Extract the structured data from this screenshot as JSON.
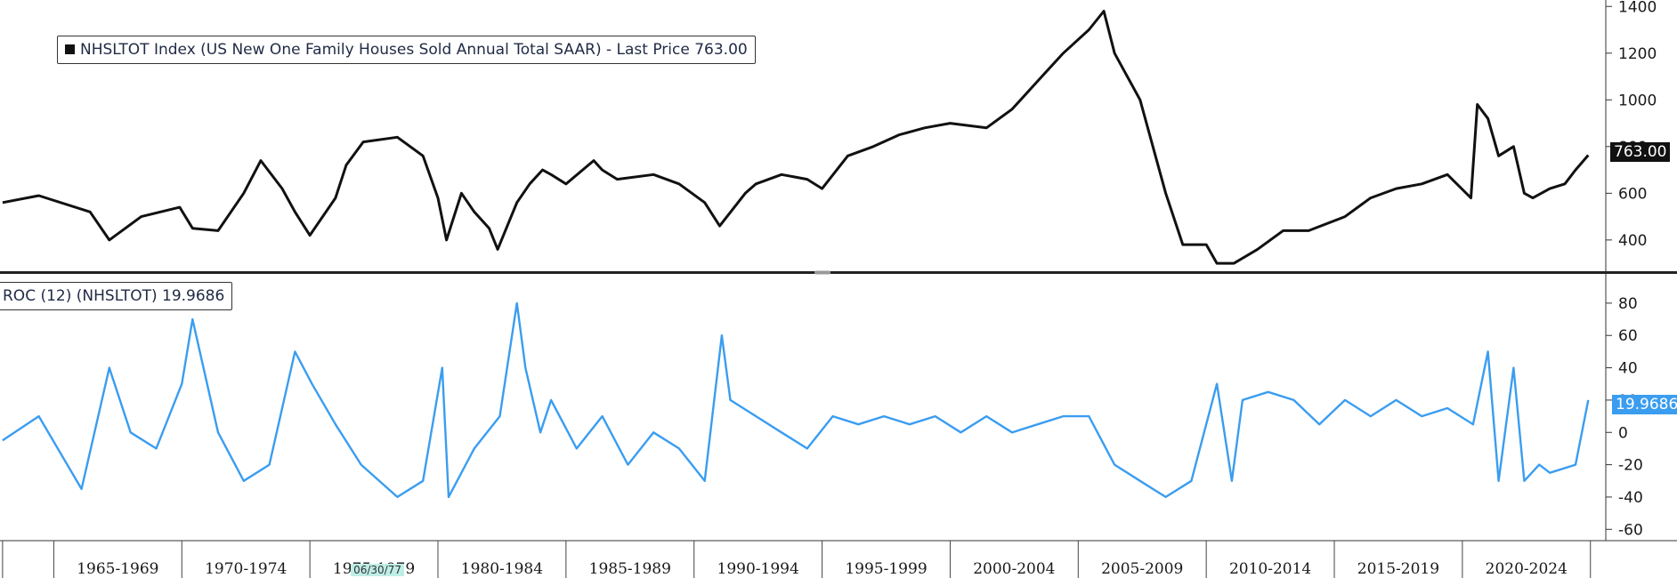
{
  "chart_data": [
    {
      "type": "line",
      "legend": "NHSLTOT Index (US New One Family Houses Sold Annual Total SAAR) - Last Price 763.00",
      "last_value_label": "763.00",
      "color": "#111111",
      "y_ticks": [
        400,
        600,
        800,
        1000,
        1200,
        1400
      ],
      "ylim": [
        270,
        1420
      ],
      "x": [
        "1963-01",
        "1964-06",
        "1966-06",
        "1967-03",
        "1968-06",
        "1969-12",
        "1970-06",
        "1971-06",
        "1972-06",
        "1973-02",
        "1973-12",
        "1974-06",
        "1975-01",
        "1976-01",
        "1976-06",
        "1977-02",
        "1978-06",
        "1979-06",
        "1980-01",
        "1980-05",
        "1980-12",
        "1981-06",
        "1982-01",
        "1982-05",
        "1983-02",
        "1983-08",
        "1984-02",
        "1984-06",
        "1985-01",
        "1986-02",
        "1986-06",
        "1987-01",
        "1988-06",
        "1989-06",
        "1990-06",
        "1991-01",
        "1992-01",
        "1992-06",
        "1993-06",
        "1994-06",
        "1995-01",
        "1996-01",
        "1997-01",
        "1998-01",
        "1999-01",
        "2000-01",
        "2001-06",
        "2002-06",
        "2003-06",
        "2004-06",
        "2005-06",
        "2006-01",
        "2006-06",
        "2007-06",
        "2008-06",
        "2009-02",
        "2010-01",
        "2010-06",
        "2011-02",
        "2012-01",
        "2013-01",
        "2014-01",
        "2015-06",
        "2016-06",
        "2017-06",
        "2018-06",
        "2019-06",
        "2020-05",
        "2020-08",
        "2021-01",
        "2021-06",
        "2022-01",
        "2022-06",
        "2022-10",
        "2023-06",
        "2024-01",
        "2024-06",
        "2024-12"
      ],
      "values": [
        560,
        590,
        520,
        400,
        500,
        540,
        450,
        440,
        600,
        740,
        620,
        520,
        420,
        580,
        720,
        820,
        840,
        760,
        580,
        400,
        600,
        520,
        450,
        360,
        560,
        640,
        700,
        680,
        640,
        740,
        700,
        660,
        680,
        640,
        560,
        460,
        600,
        640,
        680,
        660,
        620,
        760,
        800,
        850,
        880,
        900,
        880,
        960,
        1080,
        1200,
        1300,
        1380,
        1200,
        1000,
        600,
        380,
        380,
        300,
        300,
        360,
        440,
        440,
        500,
        580,
        620,
        640,
        680,
        580,
        980,
        920,
        760,
        800,
        600,
        580,
        620,
        640,
        700,
        763
      ]
    },
    {
      "type": "line",
      "legend": "ROC (12) (NHSLTOT) 19.9686",
      "last_value_label": "19.9686",
      "color": "#3a9df0",
      "y_ticks": [
        -60,
        -40,
        -20,
        0,
        20,
        40,
        60,
        80
      ],
      "ylim": [
        -67,
        97
      ],
      "x": [
        "1963-01",
        "1964-06",
        "1966-02",
        "1967-03",
        "1968-01",
        "1969-01",
        "1970-01",
        "1970-06",
        "1971-06",
        "1972-06",
        "1973-06",
        "1974-06",
        "1975-02",
        "1976-01",
        "1977-01",
        "1978-06",
        "1979-06",
        "1980-03",
        "1980-06",
        "1981-06",
        "1982-06",
        "1983-02",
        "1983-06",
        "1984-01",
        "1984-06",
        "1985-06",
        "1986-06",
        "1987-06",
        "1988-06",
        "1989-06",
        "1990-06",
        "1991-02",
        "1991-06",
        "1992-06",
        "1993-06",
        "1994-06",
        "1995-06",
        "1996-06",
        "1997-06",
        "1998-06",
        "1999-06",
        "2000-06",
        "2001-06",
        "2002-06",
        "2003-06",
        "2004-06",
        "2005-06",
        "2006-06",
        "2007-06",
        "2008-06",
        "2009-06",
        "2010-06",
        "2011-01",
        "2011-06",
        "2012-06",
        "2013-06",
        "2014-06",
        "2015-06",
        "2016-06",
        "2017-06",
        "2018-06",
        "2019-06",
        "2020-06",
        "2021-01",
        "2021-06",
        "2022-01",
        "2022-06",
        "2023-01",
        "2023-06",
        "2024-06",
        "2024-12"
      ],
      "values": [
        -5,
        10,
        -35,
        40,
        0,
        -10,
        30,
        70,
        0,
        -30,
        -20,
        50,
        30,
        5,
        -20,
        -40,
        -30,
        40,
        -40,
        -10,
        10,
        80,
        40,
        0,
        20,
        -10,
        10,
        -20,
        0,
        -10,
        -30,
        60,
        20,
        10,
        0,
        -10,
        10,
        5,
        10,
        5,
        10,
        0,
        10,
        0,
        5,
        10,
        10,
        -20,
        -30,
        -40,
        -30,
        30,
        -30,
        20,
        25,
        20,
        5,
        20,
        10,
        20,
        10,
        15,
        5,
        50,
        -30,
        40,
        -30,
        -20,
        -25,
        -20,
        20
      ]
    }
  ],
  "x_axis": {
    "tick_years": [
      1963,
      1965,
      1970,
      1975,
      1980,
      1985,
      1990,
      1995,
      2000,
      2005,
      2010,
      2015,
      2020,
      2025
    ],
    "labels": [
      {
        "text": "1965-1969",
        "center_year": 1967.5
      },
      {
        "text": "1970-1974",
        "center_year": 1972.5
      },
      {
        "text": "1975-1979",
        "center_year": 1977.5
      },
      {
        "text": "1980-1984",
        "center_year": 1982.5
      },
      {
        "text": "1985-1989",
        "center_year": 1987.5
      },
      {
        "text": "1990-1994",
        "center_year": 1992.5
      },
      {
        "text": "1995-1999",
        "center_year": 1997.5
      },
      {
        "text": "2000-2004",
        "center_year": 2002.5
      },
      {
        "text": "2005-2009",
        "center_year": 2007.5
      },
      {
        "text": "2010-2014",
        "center_year": 2012.5
      },
      {
        "text": "2015-2019",
        "center_year": 2017.5
      },
      {
        "text": "2020-2024",
        "center_year": 2022.5
      }
    ],
    "cursor_date": "06/30/77",
    "cursor_year": 1977.5
  }
}
